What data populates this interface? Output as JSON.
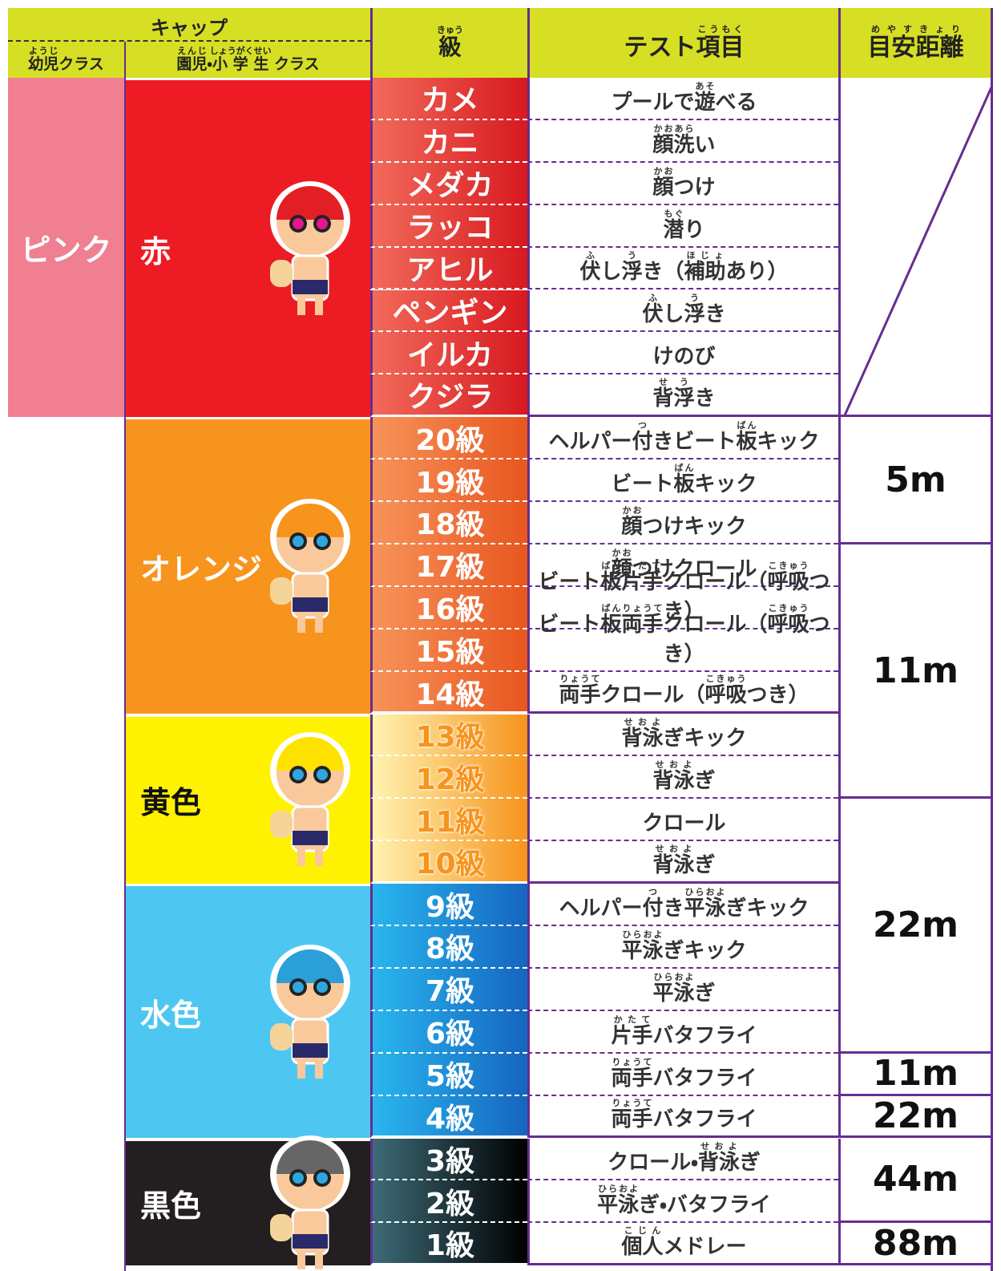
{
  "header": {
    "cap": [
      "キャップ"
    ],
    "youji_class": [
      [
        "幼児",
        "ようじ"
      ],
      "クラス"
    ],
    "school_class": [
      [
        "園児",
        "えんじ"
      ],
      "・",
      [
        "小学生",
        "しょうがくせい"
      ],
      " クラス"
    ],
    "level": [
      [
        "級",
        "きゅう"
      ]
    ],
    "test": [
      "テスト",
      [
        "項目",
        "こうもく"
      ]
    ],
    "distance": [
      [
        "目安",
        "めやす"
      ],
      [
        "距離",
        "きょり"
      ]
    ]
  },
  "youji_cap": "ピンク",
  "groups": [
    {
      "cap": "赤",
      "levels": [
        {
          "level": "カメ",
          "test": [
            "プールで",
            [
              "遊",
              "あそ"
            ],
            "べる"
          ]
        },
        {
          "level": "カニ",
          "test": [
            [
              "顔洗",
              "かおあら"
            ],
            "い"
          ]
        },
        {
          "level": "メダカ",
          "test": [
            [
              "顔",
              "かお"
            ],
            "つけ"
          ]
        },
        {
          "level": "ラッコ",
          "test": [
            [
              "潜",
              "もぐ"
            ],
            "り"
          ]
        },
        {
          "level": "アヒル",
          "test": [
            [
              "伏",
              "ふ"
            ],
            "し",
            [
              "浮",
              "う"
            ],
            "き（",
            [
              "補助",
              "ほじょ"
            ],
            "あり）"
          ]
        },
        {
          "level": "ペンギン",
          "test": [
            [
              "伏",
              "ふ"
            ],
            "し",
            [
              "浮",
              "う"
            ],
            "き"
          ]
        },
        {
          "level": "イルカ",
          "test": [
            "けのび"
          ]
        },
        {
          "level": "クジラ",
          "test": [
            [
              "背",
              "せ"
            ],
            [
              "浮",
              "う"
            ],
            "き"
          ]
        }
      ]
    },
    {
      "cap": "オレンジ",
      "levels": [
        {
          "level": "20級",
          "test": [
            "ヘルパー",
            [
              "付",
              "つ"
            ],
            "きビート",
            [
              "板",
              "ばん"
            ],
            "キック"
          ]
        },
        {
          "level": "19級",
          "test": [
            "ビート",
            [
              "板",
              "ばん"
            ],
            "キック"
          ]
        },
        {
          "level": "18級",
          "test": [
            [
              "顔",
              "かお"
            ],
            "つけキック"
          ]
        },
        {
          "level": "17級",
          "test": [
            [
              "顔",
              "かお"
            ],
            "つけクロール"
          ]
        },
        {
          "level": "16級",
          "test": [
            "ビート",
            [
              "板",
              "ばん"
            ],
            [
              "片手",
              "かたて"
            ],
            "クロール（",
            [
              "呼吸",
              "こきゅう"
            ],
            "つき）"
          ]
        },
        {
          "level": "15級",
          "test": [
            "ビート",
            [
              "板",
              "ばん"
            ],
            [
              "両手",
              "りょうて"
            ],
            "クロール（",
            [
              "呼吸",
              "こきゅう"
            ],
            "つき）"
          ]
        },
        {
          "level": "14級",
          "test": [
            [
              "両手",
              "りょうて"
            ],
            "クロール（",
            [
              "呼吸",
              "こきゅう"
            ],
            "つき）"
          ]
        }
      ]
    },
    {
      "cap": "黄色",
      "levels": [
        {
          "level": "13級",
          "test": [
            [
              "背泳",
              "せおよ"
            ],
            "ぎキック"
          ]
        },
        {
          "level": "12級",
          "test": [
            [
              "背泳",
              "せおよ"
            ],
            "ぎ"
          ]
        },
        {
          "level": "11級",
          "test": [
            "クロール"
          ]
        },
        {
          "level": "10級",
          "test": [
            [
              "背泳",
              "せおよ"
            ],
            "ぎ"
          ]
        }
      ]
    },
    {
      "cap": "水色",
      "levels": [
        {
          "level": "9級",
          "test": [
            "ヘルパー",
            [
              "付",
              "つ"
            ],
            "き",
            [
              "平泳",
              "ひらおよ"
            ],
            "ぎキック"
          ]
        },
        {
          "level": "8級",
          "test": [
            [
              "平泳",
              "ひらおよ"
            ],
            "ぎキック"
          ]
        },
        {
          "level": "7級",
          "test": [
            [
              "平泳",
              "ひらおよ"
            ],
            "ぎ"
          ]
        },
        {
          "level": "6級",
          "test": [
            [
              "片手",
              "かたて"
            ],
            "バタフライ"
          ]
        },
        {
          "level": "5級",
          "test": [
            [
              "両手",
              "りょうて"
            ],
            "バタフライ"
          ]
        },
        {
          "level": "4級",
          "test": [
            [
              "両手",
              "りょうて"
            ],
            "バタフライ"
          ]
        }
      ]
    },
    {
      "cap": "黒色",
      "levels": [
        {
          "level": "3級",
          "test": [
            "クロール・",
            [
              "背泳",
              "せおよ"
            ],
            "ぎ"
          ]
        },
        {
          "level": "2級",
          "test": [
            [
              "平泳",
              "ひらおよ"
            ],
            "ぎ・バタフライ"
          ]
        },
        {
          "level": "1級",
          "test": [
            [
              "個人",
              "こじん"
            ],
            "メドレー"
          ]
        }
      ]
    }
  ],
  "distances": [
    "5m",
    "11m",
    "22m",
    "11m",
    "22m",
    "44m",
    "88m"
  ]
}
